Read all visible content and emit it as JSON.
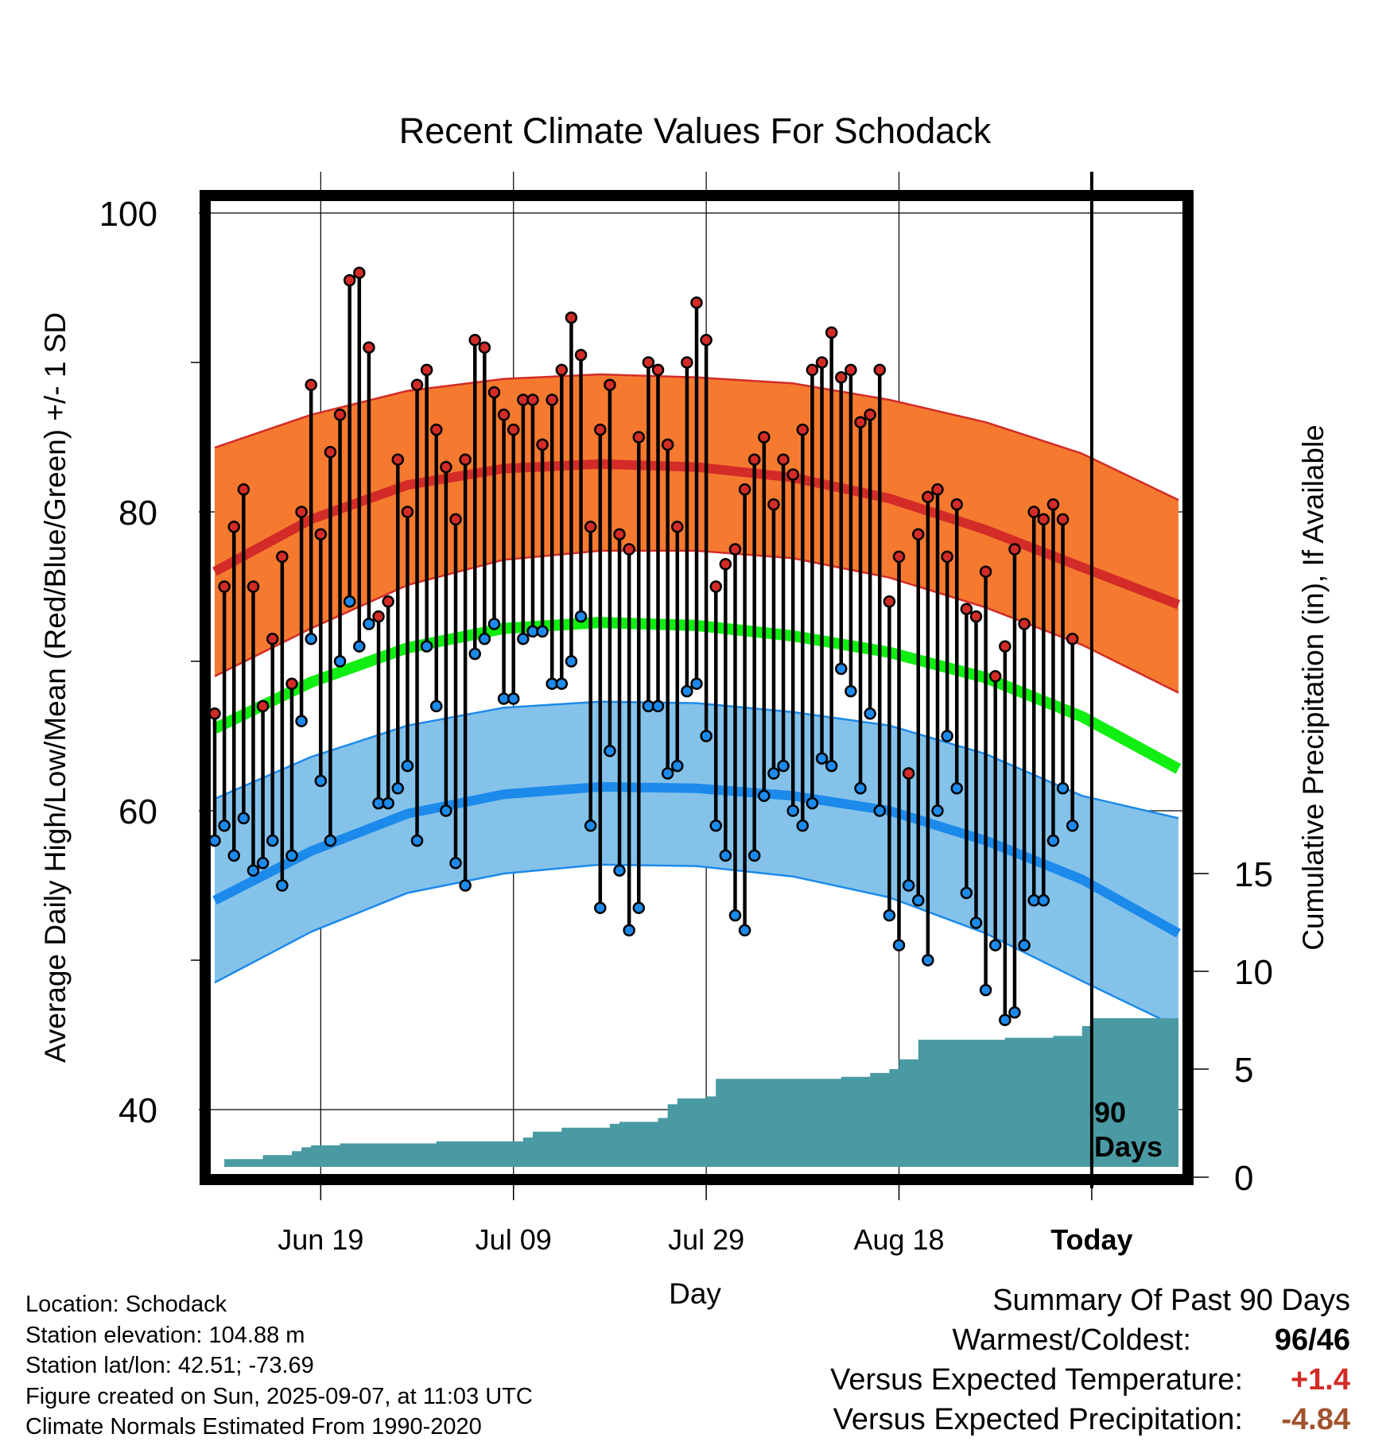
{
  "chart_data": {
    "type": "line",
    "title": "Recent Climate Values For Schodack",
    "xlabel": "Day",
    "ylabel_left": "Average Daily High/Low/Mean (Red/Blue/Green) +/- 1 SD",
    "ylabel_right": "Cumulative Precipitation (in), If Available",
    "x_tick_labels": [
      "Jun 19",
      "Jul 09",
      "Jul 29",
      "Aug 18",
      "Today"
    ],
    "x_tick_days": [
      11,
      31,
      51,
      71,
      91
    ],
    "today_day": 91,
    "temp_ticks": [
      40,
      60,
      80,
      100
    ],
    "temp_ylim": [
      36.5,
      102
    ],
    "precip_ticks": [
      0,
      5,
      10,
      15
    ],
    "precip_ylim": [
      0,
      35
    ],
    "marker_label": "90 Days",
    "grid": true,
    "normals": {
      "days": [
        0,
        10,
        20,
        30,
        40,
        50,
        60,
        70,
        80,
        90,
        100
      ],
      "high_mean": [
        76,
        79.5,
        81.8,
        82.9,
        83.2,
        83.0,
        82.3,
        80.9,
        78.8,
        76.3,
        73.8
      ],
      "high_sd_upper": [
        84.3,
        86.5,
        88.1,
        88.9,
        89.2,
        89.0,
        88.6,
        87.5,
        86.0,
        83.9,
        80.8
      ],
      "high_sd_lower": [
        69,
        72.2,
        75.1,
        76.8,
        77.4,
        77.4,
        76.9,
        75.6,
        73.6,
        71.1,
        67.9
      ],
      "mean": [
        65.5,
        68.6,
        70.9,
        72.2,
        72.6,
        72.4,
        71.7,
        70.6,
        68.9,
        66.3,
        62.8
      ],
      "low_mean": [
        54.0,
        57.3,
        59.8,
        61.1,
        61.6,
        61.5,
        61.0,
        60.0,
        58.0,
        55.4,
        51.8
      ],
      "low_sd_upper": [
        60.8,
        63.6,
        65.7,
        66.9,
        67.3,
        67.2,
        66.6,
        65.7,
        63.8,
        61.0,
        59.5
      ],
      "low_sd_lower": [
        48.5,
        51.9,
        54.5,
        55.8,
        56.4,
        56.3,
        55.6,
        54.2,
        51.8,
        48.6,
        45.5
      ]
    },
    "series": [
      {
        "name": "High",
        "values": [
          66.5,
          75,
          79,
          81.5,
          75,
          67,
          71.5,
          77,
          68.5,
          80,
          88.5,
          78.5,
          84,
          86.5,
          95.5,
          96,
          91,
          73,
          74,
          83.5,
          80,
          88.5,
          89.5,
          85.5,
          83,
          79.5,
          83.5,
          91.5,
          91,
          88,
          86.5,
          85.5,
          87.5,
          87.5,
          84.5,
          87.5,
          89.5,
          93,
          90.5,
          79,
          85.5,
          88.5,
          78.5,
          77.5,
          85,
          90,
          89.5,
          84.5,
          79,
          90,
          94,
          91.5,
          75,
          76.5,
          77.5,
          81.5,
          83.5,
          85,
          80.5,
          83.5,
          82.5,
          85.5,
          89.5,
          90,
          92,
          89,
          89.5,
          86,
          86.5,
          89.5,
          74,
          77,
          62.5,
          78.5,
          81,
          81.5,
          77,
          80.5,
          73.5,
          73,
          76,
          69,
          71,
          77.5,
          72.5,
          80,
          79.5,
          80.5,
          79.5,
          71.5
        ]
      },
      {
        "name": "Low",
        "values": [
          58,
          59,
          57,
          59.5,
          56,
          56.5,
          58,
          55,
          57,
          66,
          71.5,
          62,
          58,
          70,
          74,
          71,
          72.5,
          60.5,
          60.5,
          61.5,
          63,
          58,
          71,
          67,
          60,
          56.5,
          55,
          70.5,
          71.5,
          72.5,
          67.5,
          67.5,
          71.5,
          72,
          72,
          68.5,
          68.5,
          70,
          73,
          59,
          53.5,
          64,
          56,
          52,
          53.5,
          67,
          67,
          62.5,
          63,
          68,
          68.5,
          65,
          59,
          57,
          53,
          52,
          57,
          61,
          62.5,
          63,
          60,
          59,
          60.5,
          63.5,
          63,
          69.5,
          68,
          61.5,
          66.5,
          60,
          53,
          51,
          55,
          54,
          50,
          60,
          65,
          61.5,
          54.5,
          52.5,
          48,
          51,
          46,
          46.5,
          51,
          54,
          54,
          58,
          61.5,
          59
        ]
      }
    ],
    "precip": {
      "days": [
        0,
        1,
        4,
        5,
        7,
        8,
        9,
        10,
        11,
        12,
        13,
        14,
        17,
        18,
        19,
        20,
        21,
        22,
        23,
        24,
        25,
        26,
        27,
        28,
        29,
        30,
        31,
        32,
        33,
        34,
        36,
        37,
        40,
        41,
        42,
        43,
        45,
        46,
        47,
        48,
        49,
        50,
        51,
        52,
        53,
        54,
        55,
        56,
        60,
        64,
        65,
        66,
        67,
        68,
        69,
        70,
        71,
        72,
        73,
        74,
        75,
        76,
        77,
        78,
        79,
        80,
        81,
        82,
        83,
        84,
        85,
        86,
        87,
        88,
        89,
        90,
        91,
        100
      ],
      "values": [
        0.0,
        0.4,
        0.4,
        0.6,
        0.6,
        0.8,
        1.0,
        1.1,
        1.1,
        1.1,
        1.2,
        1.2,
        1.2,
        1.2,
        1.2,
        1.2,
        1.2,
        1.2,
        1.3,
        1.3,
        1.3,
        1.3,
        1.3,
        1.3,
        1.3,
        1.3,
        1.3,
        1.5,
        1.8,
        1.8,
        2.0,
        2.0,
        2.0,
        2.2,
        2.3,
        2.3,
        2.3,
        2.5,
        3.2,
        3.5,
        3.5,
        3.5,
        3.6,
        4.5,
        4.5,
        4.5,
        4.5,
        4.5,
        4.5,
        4.5,
        4.6,
        4.6,
        4.6,
        4.8,
        4.8,
        5.0,
        5.5,
        5.5,
        6.5,
        6.5,
        6.5,
        6.5,
        6.5,
        6.5,
        6.5,
        6.5,
        6.5,
        6.6,
        6.6,
        6.6,
        6.6,
        6.6,
        6.7,
        6.7,
        6.7,
        7.2,
        7.6,
        7.6
      ]
    }
  },
  "footer": {
    "location": "Location: Schodack",
    "elevation": "Station elevation: 104.88 m",
    "latlon": "Station lat/lon: 42.51; -73.69",
    "created": "Figure created on Sun, 2025-09-07, at 11:03 UTC",
    "normals": "Climate Normals Estimated From 1990-2020"
  },
  "summary": {
    "heading": "Summary Of Past 90 Days",
    "warmest_label": "Warmest/Coldest:",
    "warmest_value": "96",
    "coldest_value": "46",
    "temp_label": "Versus Expected Temperature:",
    "temp_value": "+1.4",
    "precip_label": "Versus Expected Precipitation:",
    "precip_value": "-4.84"
  },
  "colors": {
    "high_band": "#f57a30",
    "high_line": "#d32b27",
    "high_edge": "#d32b27",
    "mean_line": "#11ee11",
    "low_band": "#85c2ea",
    "low_line": "#1c8aeb",
    "low_edge": "#1c8aeb",
    "precip_fill": "#4a9aa3",
    "high_dot": "#d32b27",
    "low_dot": "#1c8aeb",
    "temp_positive": "#d32b27",
    "precip_negative": "#a0522d"
  }
}
